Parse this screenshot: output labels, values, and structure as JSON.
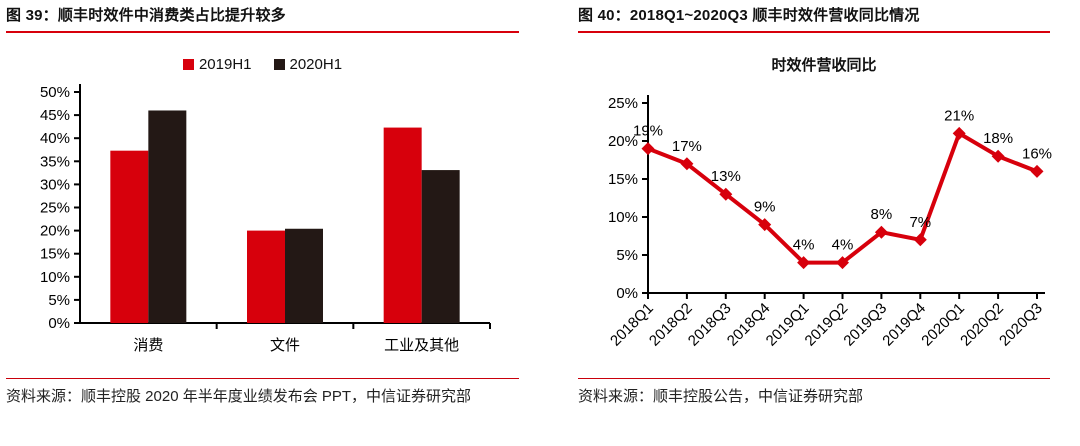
{
  "left_figure": {
    "title": "图 39：顺丰时效件中消费类占比提升较多",
    "source": "资料来源：顺丰控股 2020 年半年度业绩发布会 PPT，中信证券研究部"
  },
  "right_figure": {
    "title": "图 40：2018Q1~2020Q3 顺丰时效件营收同比情况",
    "source": "资料来源：顺丰控股公告，中信证券研究部"
  },
  "colors": {
    "accent_red": "#d7000c",
    "dark_bar": "#231815",
    "rule_red": "#c9000b",
    "axis_black": "#000000"
  },
  "chart_data": [
    {
      "type": "bar",
      "title": "",
      "categories": [
        "消费",
        "文件",
        "工业及其他"
      ],
      "series": [
        {
          "name": "2019H1",
          "color": "#d7000c",
          "values": [
            37.3,
            20.0,
            42.3
          ]
        },
        {
          "name": "2020H1",
          "color": "#231815",
          "values": [
            46.0,
            20.4,
            33.1
          ]
        }
      ],
      "ylabel": "",
      "ylim": [
        0,
        50
      ],
      "ytick_step": 5,
      "ytick_suffix": "%",
      "legend_position": "top",
      "grid": false
    },
    {
      "type": "line",
      "title": "时效件营收同比",
      "categories": [
        "2018Q1",
        "2018Q2",
        "2018Q3",
        "2018Q4",
        "2019Q1",
        "2019Q2",
        "2019Q3",
        "2019Q4",
        "2020Q1",
        "2020Q2",
        "2020Q3"
      ],
      "series": [
        {
          "name": "时效件营收同比",
          "color": "#d7000c",
          "values": [
            19,
            17,
            13,
            9,
            4,
            4,
            8,
            7,
            21,
            18,
            16
          ]
        }
      ],
      "data_labels": [
        "19%",
        "17%",
        "13%",
        "9%",
        "4%",
        "4%",
        "8%",
        "7%",
        "21%",
        "18%",
        "16%"
      ],
      "ylabel": "",
      "ylim": [
        0,
        25
      ],
      "ytick_step": 5,
      "ytick_suffix": "%",
      "marker": "diamond",
      "legend_position": "none",
      "grid": false
    }
  ]
}
